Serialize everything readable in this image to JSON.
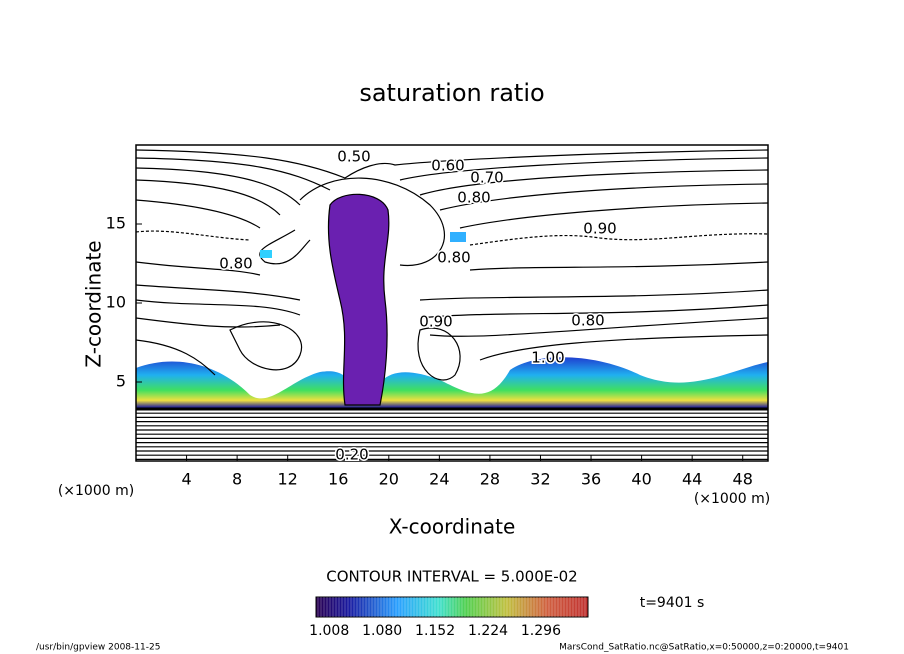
{
  "chart_data": {
    "type": "contour",
    "title": "saturation ratio",
    "xlabel": "X-coordinate",
    "ylabel": "Z-coordinate",
    "x_unit": "(×1000 m)",
    "y_unit": "(×1000 m)",
    "xlim": [
      0,
      50
    ],
    "ylim": [
      0,
      20
    ],
    "xticks": [
      4,
      8,
      12,
      16,
      20,
      24,
      28,
      32,
      36,
      40,
      44,
      48
    ],
    "yticks": [
      5,
      10,
      15
    ],
    "contour_interval": "CONTOUR INTERVAL = 5.000E-02",
    "contour_labels": [
      {
        "value": 0.5,
        "label": "0.50"
      },
      {
        "value": 0.6,
        "label": "0.60"
      },
      {
        "value": 0.7,
        "label": "0.70"
      },
      {
        "value": 0.8,
        "label": "0.80"
      },
      {
        "value": 0.9,
        "label": "0.90"
      },
      {
        "value": 0.8,
        "label": "0.80"
      },
      {
        "value": 0.8,
        "label": "0.80"
      },
      {
        "value": 0.9,
        "label": "0.90"
      },
      {
        "value": 0.8,
        "label": "0.80"
      },
      {
        "value": 1,
        "label": "1.00"
      },
      {
        "value": 0.2,
        "label": "0.20"
      }
    ],
    "colorbar": {
      "clim": [
        0.99,
        1.36
      ],
      "ticks": [
        1.008,
        {
          "value": 1.08,
          "label": "1.080"
        },
        1.152,
        1.224,
        1.296
      ]
    },
    "time_label": "t=9401 s",
    "footer_left": "/usr/bin/gpview  2008-11-25",
    "footer_right": "MarsCond_SatRatio.nc@SatRatio,x=0:50000,z=0:20000,t=9401"
  }
}
